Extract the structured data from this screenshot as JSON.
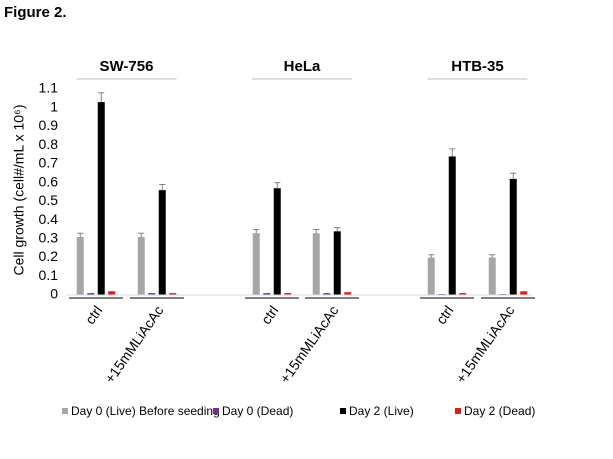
{
  "chart_data": {
    "type": "bar",
    "title": "Figure 2.",
    "y_label": "Cell growth (cell#/mL x 10⁶)",
    "groups": [
      "SW-756",
      "HeLa",
      "HTB-35"
    ],
    "categories": [
      "ctrl",
      "+15mMLiAcAc",
      "ctrl",
      "+15mMLiAcAc",
      "ctrl",
      "+15mMLiAcAc"
    ],
    "series": [
      {
        "name": "Day 0 (Live) Before seeding",
        "color": "#a6a6a6",
        "values": [
          0.31,
          0.31,
          0.33,
          0.33,
          0.2,
          0.2
        ],
        "errors": [
          0.02,
          0.02,
          0.02,
          0.02,
          0.015,
          0.015
        ]
      },
      {
        "name": "Day 0 (Dead)",
        "color": "#7030a0",
        "values": [
          0.01,
          0.01,
          0.01,
          0.01,
          0.005,
          0.005
        ]
      },
      {
        "name": "Day 2 (Live)",
        "color": "#000000",
        "values": [
          1.03,
          0.56,
          0.57,
          0.34,
          0.74,
          0.62
        ],
        "errors": [
          0.05,
          0.03,
          0.03,
          0.02,
          0.04,
          0.03
        ]
      },
      {
        "name": "Day 2 (Dead)",
        "color": "#e31a1c",
        "values": [
          0.02,
          0.01,
          0.01,
          0.015,
          0.01,
          0.02
        ]
      }
    ],
    "ylim": [
      0,
      1.1
    ],
    "yticks": [
      0,
      0.1,
      0.2,
      0.3,
      0.4,
      0.5,
      0.6,
      0.7,
      0.8,
      0.9,
      1,
      1.1
    ],
    "grid": false
  }
}
